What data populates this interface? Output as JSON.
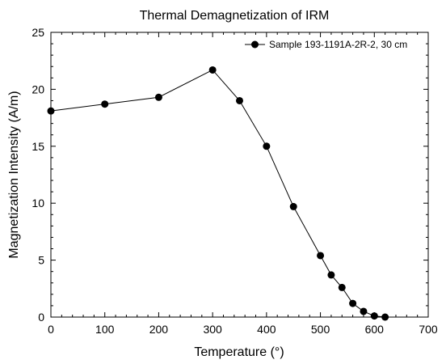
{
  "chart_data": {
    "type": "line",
    "title": "Thermal Demagnetization of IRM",
    "xlabel": "Temperature (°)",
    "ylabel": "Magnetization Intensity (A/m)",
    "xlim": [
      0,
      700
    ],
    "ylim": [
      0,
      25
    ],
    "xticks": [
      0,
      100,
      200,
      300,
      400,
      500,
      600,
      700
    ],
    "yticks": [
      0,
      5,
      10,
      15,
      20,
      25
    ],
    "grid": false,
    "legend_position": "top-right",
    "series": [
      {
        "name": "Sample 193-1191A-2R-2, 30 cm",
        "color": "#000000",
        "marker": "circle",
        "x": [
          0,
          100,
          200,
          300,
          350,
          400,
          450,
          500,
          520,
          540,
          560,
          580,
          600,
          620
        ],
        "y": [
          18.1,
          18.7,
          19.3,
          21.7,
          19.0,
          15.0,
          9.7,
          5.4,
          3.7,
          2.6,
          1.2,
          0.5,
          0.1,
          0.0
        ]
      }
    ]
  }
}
